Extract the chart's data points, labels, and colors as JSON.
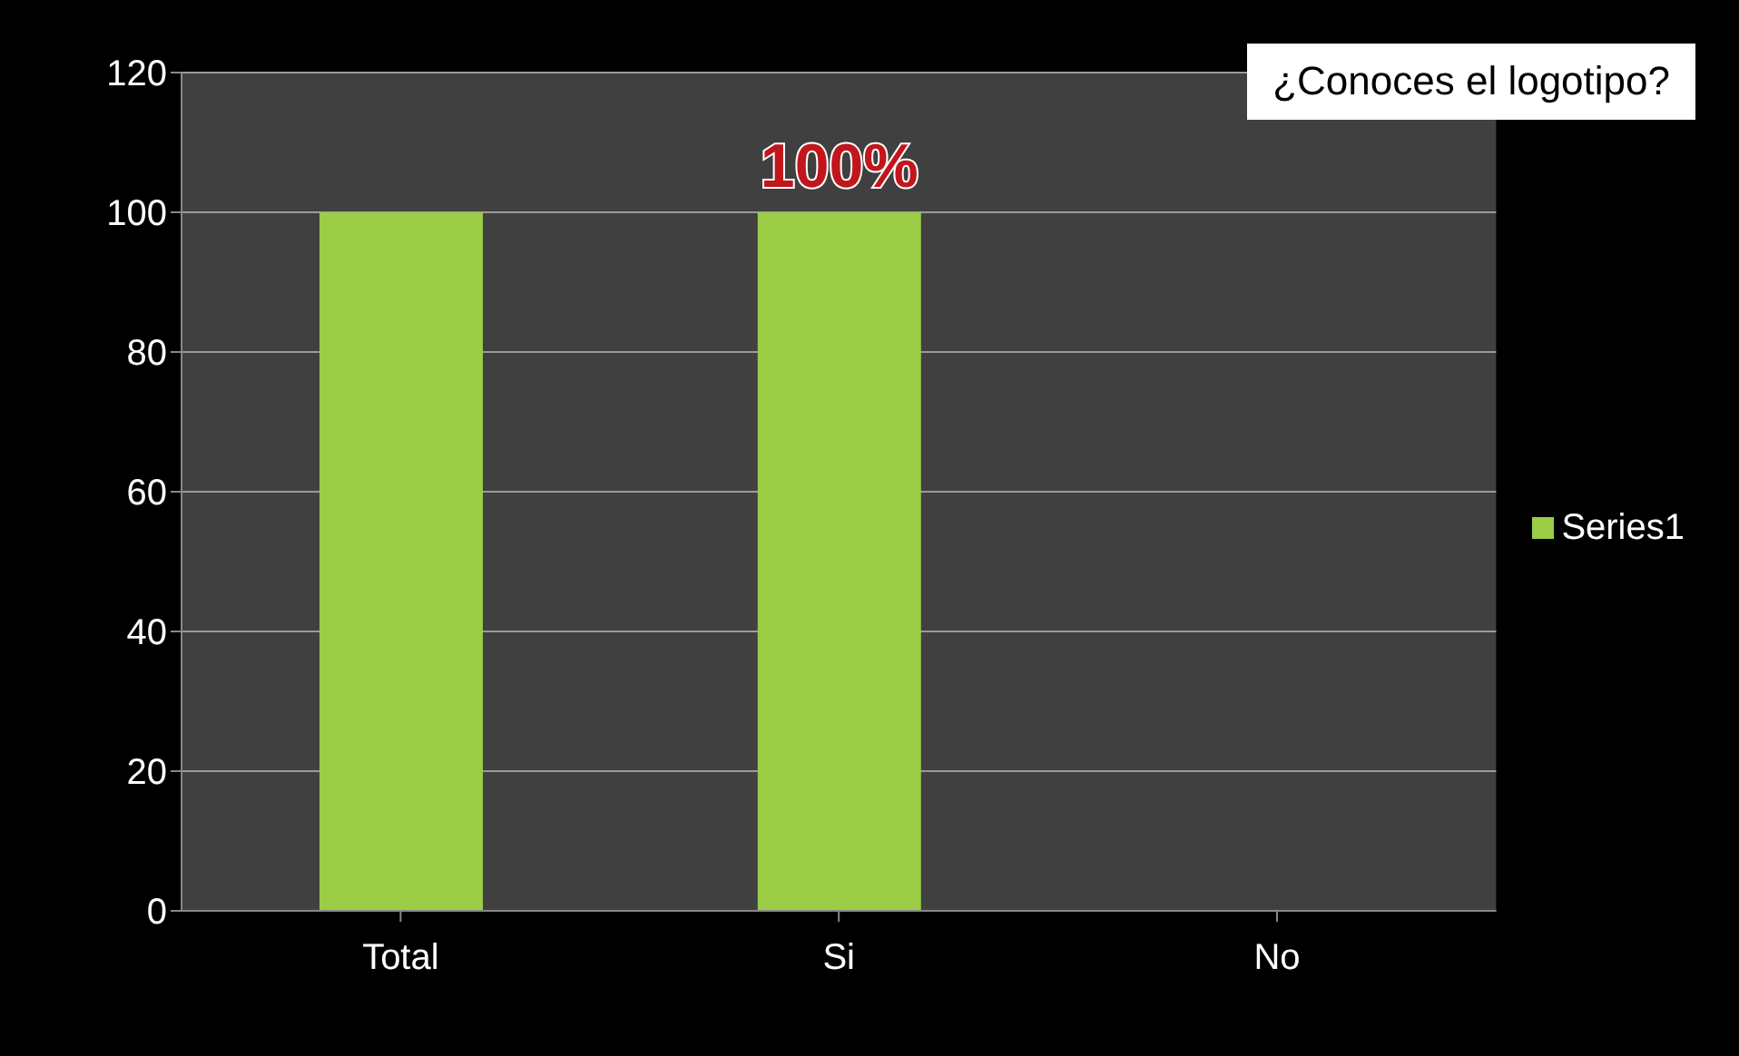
{
  "chart_data": {
    "type": "bar",
    "title": "¿Conoces el logotipo?",
    "categories": [
      "Total",
      "Si",
      "No"
    ],
    "series": [
      {
        "name": "Series1",
        "color": "#9acd45",
        "values": [
          100,
          100,
          0
        ],
        "value_labels": [
          null,
          "100%",
          null
        ]
      }
    ],
    "ylim": [
      0,
      120
    ],
    "yticks": [
      0,
      20,
      40,
      60,
      80,
      100,
      120
    ],
    "grid": "y",
    "legend": "right"
  }
}
